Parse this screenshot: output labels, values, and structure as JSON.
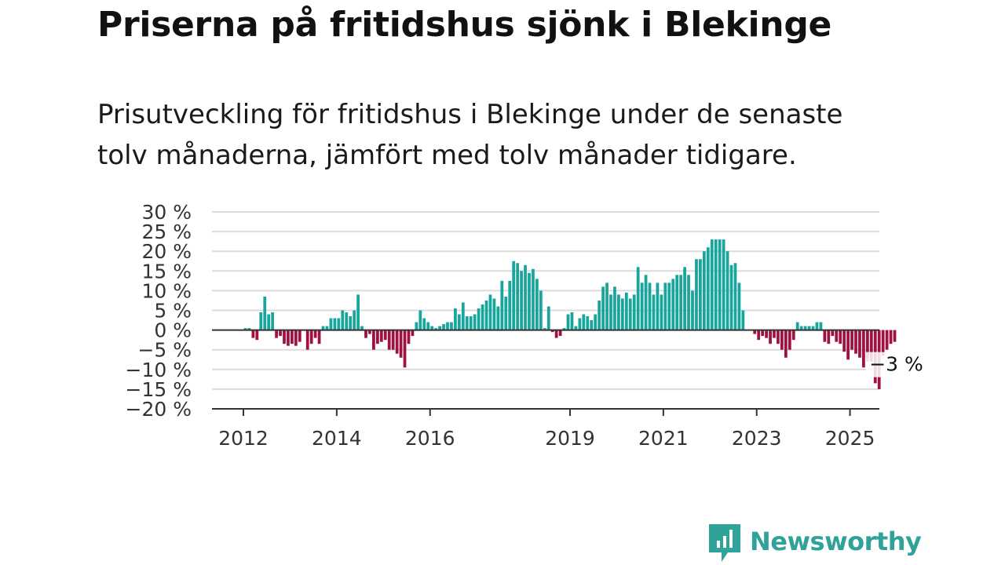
{
  "title": "Priserna på fritidshus sjönk i Blekinge",
  "subtitle": "Prisutveckling för fritidshus i Blekinge under de senaste tolv månaderna, jämfört med tolv månader tidigare.",
  "logo": {
    "text": "Newsworthy",
    "icon": "newsworthy-bar-chart-icon"
  },
  "colors": {
    "positive": "#17a59c",
    "negative": "#a01140",
    "axis": "#333333",
    "grid": "#dcdcdc",
    "brand": "#2fa39a"
  },
  "chart_data": {
    "type": "bar",
    "title": "Priserna på fritidshus sjönk i Blekinge",
    "xlabel": "",
    "ylabel": "",
    "ylim": [
      -20,
      30
    ],
    "y_ticks": [
      30,
      25,
      20,
      15,
      10,
      5,
      0,
      -5,
      -10,
      -15,
      -20
    ],
    "y_tick_labels": [
      "30 %",
      "25 %",
      "20 %",
      "15 %",
      "10 %",
      "5 %",
      "0 %",
      "−5 %",
      "−10 %",
      "−15 %",
      "−20 %"
    ],
    "x_tick_labels": [
      "2012",
      "2014",
      "2016",
      "2019",
      "2021",
      "2023",
      "2025"
    ],
    "grid": true,
    "annotation": "−3 %",
    "start": "2012-01",
    "end": "2025-06",
    "values": [
      0.5,
      0.5,
      -2,
      -2.5,
      4.5,
      8.5,
      4,
      4.5,
      -2,
      -1.5,
      -3.5,
      -4,
      -3.5,
      -4,
      -3,
      null,
      -5,
      -3.5,
      -2,
      -3.5,
      1,
      1,
      3,
      3,
      3,
      5,
      4.5,
      3.5,
      5,
      9,
      1,
      -2,
      -1,
      -5,
      -3.5,
      -3,
      -2.5,
      -5,
      -5,
      -6,
      -7,
      -9.5,
      -3.5,
      -1.5,
      2,
      5,
      3,
      2,
      1,
      0.5,
      1,
      1.5,
      2,
      2,
      5.5,
      4,
      7,
      3.5,
      3.5,
      4,
      5.5,
      6.5,
      7.5,
      9,
      8,
      6,
      12.5,
      8.5,
      12.5,
      17.5,
      17,
      15,
      16.5,
      14.5,
      15.5,
      13,
      10,
      0.5,
      6,
      -0.5,
      -2,
      -1.5,
      0.5,
      4,
      4.5,
      1,
      3,
      4,
      3.5,
      2.5,
      4,
      7.5,
      11,
      12,
      9,
      11,
      9,
      8,
      9.5,
      8,
      9,
      16,
      12,
      14,
      12,
      9,
      12,
      9,
      12,
      12,
      13,
      14,
      14,
      16,
      14,
      10,
      18,
      18,
      20,
      21,
      23,
      23,
      23,
      23,
      20,
      16.5,
      17,
      12,
      5,
      null,
      null,
      -1,
      -2.5,
      -1.5,
      -2,
      -3.5,
      -2,
      -3.5,
      -5,
      -7,
      -5,
      -2.5,
      2,
      1,
      1,
      1,
      1,
      2,
      2,
      -3,
      -3.5,
      -1.5,
      -3,
      -3.5,
      -5.5,
      -7.5,
      -5,
      -6,
      -7,
      -9.5,
      -8,
      -8,
      -13.5,
      -15,
      -6.5,
      -5,
      -3.5,
      -3
    ]
  }
}
